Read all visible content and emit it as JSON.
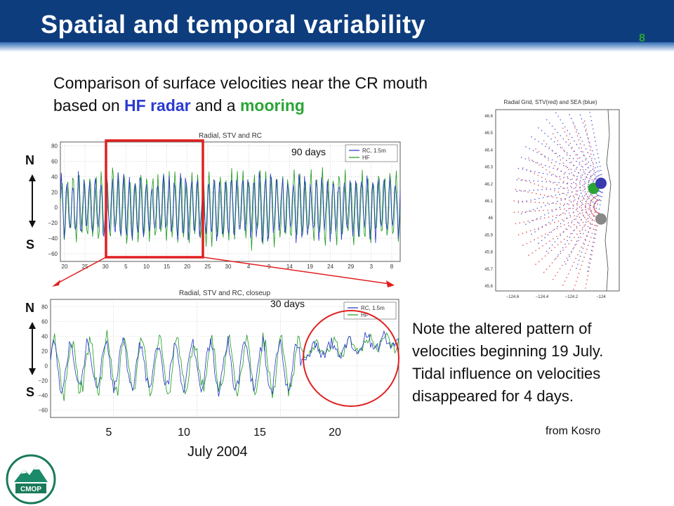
{
  "slide": {
    "title": "Spatial and temporal variability",
    "page_number": "8",
    "intro_part1": "Comparison of surface velocities near the CR mouth",
    "intro_part2": "based on ",
    "intro_hf": "HF radar",
    "intro_and": " and a ",
    "intro_mooring": "mooring",
    "note_lines": [
      "Note the altered pattern of",
      "velocities beginning 19 July.",
      "Tidal influence on velocities",
      "disappeared for 4 days."
    ],
    "credit": "from Kosro",
    "month_label": "July 2004",
    "north": "N",
    "south": "S",
    "logo_text": "CMOP",
    "colors": {
      "header": "#0e3d7e",
      "hf_text": "#2a3bd0",
      "mooring_text": "#2aa535",
      "highlight": "#e02020"
    }
  },
  "chart_data": [
    {
      "type": "line",
      "title": "Radial, STV and RC",
      "annotation": "90 days",
      "ylim": [
        -70,
        85
      ],
      "yticks": [
        -60,
        -40,
        -20,
        0,
        20,
        40,
        60,
        80
      ],
      "xticks": [
        "20",
        "25",
        "30",
        "5",
        "10",
        "15",
        "20",
        "25",
        "30",
        "4",
        "9",
        "14",
        "19",
        "24",
        "29",
        "3",
        "8"
      ],
      "legend": [
        "RC, 1.5m",
        "HF"
      ],
      "legend_position": "top-right",
      "grid": true,
      "series": [
        {
          "name": "RC, 1.5m",
          "color": "#2233cc",
          "amplitude": 45,
          "cycles": 120
        },
        {
          "name": "HF",
          "color": "#1a9a1a",
          "amplitude": 50,
          "cycles": 120
        }
      ],
      "highlight_box": {
        "label": "30 days",
        "from": "5",
        "to": "25"
      }
    },
    {
      "type": "line",
      "title": "Radial, STV and RC, closeup",
      "annotation": "30 days",
      "ylim": [
        -70,
        90
      ],
      "yticks": [
        -60,
        -40,
        -20,
        0,
        20,
        40,
        60,
        80
      ],
      "xticks": [
        "5",
        "10",
        "15",
        "20"
      ],
      "legend": [
        "RC, 1.5m",
        "HF"
      ],
      "legend_position": "top-right",
      "grid": true,
      "series": [
        {
          "name": "RC, 1.5m",
          "color": "#2233cc",
          "amplitude": 40,
          "cycles": 40
        },
        {
          "name": "HF",
          "color": "#1a9a1a",
          "amplitude": 45,
          "cycles": 40
        }
      ],
      "anomaly_start_day": 19
    },
    {
      "type": "scatter",
      "title": "Radial Grid, STV(red) and SEA (blue)",
      "xticks": [
        "-124.6",
        "-124.4",
        "-124.2",
        "-124"
      ],
      "yticks": [
        "45.6",
        "45.7",
        "45.8",
        "45.9",
        "46",
        "46.1",
        "46.2",
        "46.3",
        "46.4",
        "46.5",
        "46.6"
      ],
      "series": [
        {
          "name": "STV",
          "color": "#e05050"
        },
        {
          "name": "SEA",
          "color": "#5060e0"
        }
      ],
      "markers": [
        {
          "color": "#2aa535",
          "lon": -124.05,
          "lat": 46.17
        },
        {
          "color": "#3a3ab0",
          "lon": -124.0,
          "lat": 46.2
        },
        {
          "color": "#888888",
          "lon": -124.0,
          "lat": 45.99
        }
      ]
    }
  ]
}
